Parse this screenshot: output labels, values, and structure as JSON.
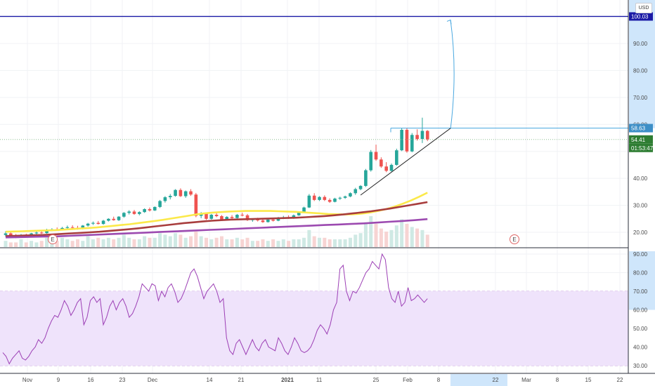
{
  "currency_label": "USD",
  "colors": {
    "up": "#26a69a",
    "down": "#ef5350",
    "ma_fast": "#fbe94a",
    "ma_mid": "#a83d3d",
    "ma_slow": "#9c4ab0",
    "rsi_line": "#9c3fb5",
    "rsi_band": "#efe3fb",
    "target_line": "#1a1aa6",
    "resistance": "#4aa8e0",
    "projection": "#4aa8e0",
    "trendline": "#222222",
    "current_price": "#2e7d32",
    "axis_highlight": "#cfe6fb"
  },
  "price_axis": {
    "ticks": [
      "90.00",
      "80.00",
      "70.00",
      "60.00",
      "40.00",
      "30.00",
      "20.00"
    ],
    "badges": {
      "target": "100.03",
      "resistance": "58.63",
      "current": "54.41",
      "countdown": "01:53:47"
    }
  },
  "rsi_axis": {
    "ticks": [
      "90.00",
      "80.00",
      "70.00",
      "60.00",
      "50.00",
      "40.00",
      "30.00"
    ]
  },
  "time_axis": {
    "labels": [
      "Nov",
      "9",
      "16",
      "23",
      "Dec",
      "14",
      "21",
      "2021",
      "11",
      "25",
      "Feb",
      "8",
      "22",
      "Mar",
      "8",
      "15",
      "22"
    ]
  },
  "earnings_markers": [
    "E",
    "E"
  ],
  "chart_data": [
    {
      "type": "candlestick",
      "title": "",
      "xlabel": "",
      "ylabel": "",
      "ylim": [
        15,
        103
      ],
      "y_ticks": [
        20,
        30,
        40,
        60,
        70,
        80,
        90
      ],
      "x_labels": [
        "Nov",
        "9",
        "16",
        "23",
        "Dec",
        "14",
        "21",
        "2021",
        "11",
        "25",
        "Feb",
        "8",
        "22",
        "Mar",
        "8",
        "15",
        "22"
      ],
      "series": [
        {
          "name": "",
          "kind": "ohlc",
          "values": [
            [
              19,
              20.4,
              18.4,
              19.6
            ],
            [
              19.6,
              20,
              18.6,
              18.8
            ],
            [
              18.8,
              19.4,
              17.8,
              18.3
            ],
            [
              18.3,
              19.4,
              18,
              19.1
            ],
            [
              19.1,
              19.5,
              18.4,
              18.7
            ],
            [
              18.7,
              19.8,
              18.5,
              19.6
            ],
            [
              19.6,
              20.3,
              19.2,
              19.9
            ],
            [
              19.9,
              20.4,
              19.4,
              19.7
            ],
            [
              19.7,
              21.3,
              19.5,
              20.9
            ],
            [
              20.9,
              21.5,
              20.4,
              21.1
            ],
            [
              21.1,
              21.8,
              20.6,
              20.9
            ],
            [
              20.9,
              22,
              20.7,
              21.6
            ],
            [
              21.6,
              22.5,
              21.2,
              21.9
            ],
            [
              21.9,
              22.6,
              21.3,
              21.7
            ],
            [
              21.7,
              22.4,
              21,
              21.3
            ],
            [
              21.3,
              22.7,
              21.1,
              22.5
            ],
            [
              22.5,
              23.5,
              22.1,
              23.2
            ],
            [
              23.2,
              24,
              22.7,
              23.5
            ],
            [
              23.5,
              24.2,
              22.9,
              23.1
            ],
            [
              23.1,
              24.6,
              22.8,
              24.3
            ],
            [
              24.3,
              25.2,
              24,
              25
            ],
            [
              25,
              25.8,
              24.3,
              24.5
            ],
            [
              24.5,
              26,
              24.2,
              25.8
            ],
            [
              25.8,
              27.5,
              25.4,
              27.2
            ],
            [
              27.2,
              28.2,
              26.6,
              27.7
            ],
            [
              27.7,
              28.3,
              26.5,
              26.8
            ],
            [
              26.8,
              27.8,
              26.3,
              27.5
            ],
            [
              27.5,
              28.9,
              27.2,
              28.6
            ],
            [
              28.6,
              29.2,
              27.7,
              28.1
            ],
            [
              28.1,
              29.6,
              27.9,
              29.4
            ],
            [
              29.4,
              32,
              29,
              31.6
            ],
            [
              31.6,
              33.4,
              31,
              33
            ],
            [
              33,
              34.2,
              32.2,
              33.5
            ],
            [
              33.5,
              36,
              33.2,
              35.7
            ],
            [
              35.7,
              36.3,
              33.1,
              33.4
            ],
            [
              33.4,
              35.5,
              32.8,
              35.2
            ],
            [
              35.2,
              36,
              33.5,
              34
            ],
            [
              34,
              34.6,
              25.6,
              26.1
            ],
            [
              26.1,
              27.5,
              25.2,
              26.9
            ],
            [
              26.9,
              27.3,
              24.6,
              25
            ],
            [
              25,
              26.8,
              24.7,
              26.5
            ],
            [
              26.5,
              27.2,
              25.6,
              26
            ],
            [
              26,
              26.4,
              24.4,
              24.8
            ],
            [
              24.8,
              26,
              24.5,
              25.7
            ],
            [
              25.7,
              26.4,
              25,
              25.3
            ],
            [
              25.3,
              26.8,
              25.1,
              26.5
            ],
            [
              26.5,
              27.3,
              25.9,
              26.3
            ],
            [
              26.3,
              26.8,
              24.2,
              24.5
            ],
            [
              24.5,
              25.2,
              23.9,
              24.8
            ],
            [
              24.8,
              25.4,
              24,
              24.4
            ],
            [
              24.4,
              24.9,
              23.5,
              23.8
            ],
            [
              23.8,
              25,
              23.6,
              24.7
            ],
            [
              24.7,
              25.3,
              24,
              24.3
            ],
            [
              24.3,
              25.7,
              24.1,
              25.4
            ],
            [
              25.4,
              26.1,
              24.9,
              25.6
            ],
            [
              25.6,
              26.3,
              25,
              25.2
            ],
            [
              25.2,
              26.6,
              25,
              26.3
            ],
            [
              26.3,
              27.8,
              26.1,
              27.5
            ],
            [
              27.5,
              29.5,
              27.3,
              29.2
            ],
            [
              29.2,
              34.2,
              29,
              33.6
            ],
            [
              33.6,
              34.5,
              31.6,
              32
            ],
            [
              32,
              33.4,
              31.6,
              33.1
            ],
            [
              33.1,
              33.7,
              31.6,
              32
            ],
            [
              32,
              32.6,
              30.9,
              31.3
            ],
            [
              31.3,
              32.8,
              31.1,
              32.5
            ],
            [
              32.5,
              33.2,
              32,
              32.8
            ],
            [
              32.8,
              33.6,
              32.4,
              33.3
            ],
            [
              33.3,
              34.8,
              33,
              34.5
            ],
            [
              34.5,
              36.5,
              33.9,
              36
            ],
            [
              36,
              37.5,
              35.6,
              37.2
            ],
            [
              37.2,
              43.5,
              36.8,
              43
            ],
            [
              43,
              50.5,
              42.5,
              49.8
            ],
            [
              49.8,
              52.5,
              46.5,
              47
            ],
            [
              47,
              47.8,
              43.9,
              44.4
            ],
            [
              44.4,
              46,
              42.3,
              42.8
            ],
            [
              42.8,
              45.5,
              42.5,
              45
            ],
            [
              45,
              51,
              44.7,
              50.4
            ],
            [
              50.4,
              58.6,
              50.1,
              58
            ],
            [
              58,
              58.6,
              49.5,
              50
            ],
            [
              50,
              56.8,
              49.7,
              56.1
            ],
            [
              56.1,
              58.2,
              54,
              54.6
            ],
            [
              54.6,
              62.5,
              53.1,
              57.6
            ],
            [
              57.6,
              57.9,
              53.8,
              54.41
            ]
          ]
        },
        {
          "name": "",
          "kind": "ma_fast",
          "values": [
            20.2,
            20.3,
            20.4,
            20.5,
            20.6,
            20.7,
            20.8,
            21,
            21.2,
            21.4,
            21.6,
            21.8,
            22.1,
            22.4,
            22.7,
            23,
            23.4,
            23.8,
            24.2,
            24.6,
            25.1,
            25.6,
            26.1,
            26.6,
            27,
            27.3,
            27.5,
            27.7,
            27.8,
            27.9,
            27.9,
            27.9,
            27.9,
            27.8,
            27.7,
            27.6,
            27.4,
            27.2,
            27,
            26.8,
            26.7,
            26.6,
            26.7,
            26.9,
            27.3,
            27.9,
            28.6,
            29.5,
            30.6,
            31.8,
            33.2,
            34.7
          ]
        },
        {
          "name": "",
          "kind": "ma_mid",
          "values": [
            18.6,
            18.7,
            18.8,
            18.9,
            19,
            19.2,
            19.4,
            19.6,
            19.8,
            20,
            20.2,
            20.5,
            20.8,
            21.1,
            21.4,
            21.8,
            22.2,
            22.6,
            23,
            23.4,
            23.7,
            24,
            24.3,
            24.5,
            24.7,
            24.8,
            24.9,
            25,
            25.1,
            25.2,
            25.3,
            25.4,
            25.6,
            25.8,
            26,
            26.3,
            26.6,
            27,
            27.4,
            27.8,
            28.3,
            28.8,
            29.4,
            30,
            30.6,
            31.2
          ]
        },
        {
          "name": "",
          "kind": "ma_slow",
          "values": [
            18.1,
            18.2,
            18.3,
            18.4,
            18.5,
            18.7,
            18.9,
            19.1,
            19.3,
            19.5,
            19.7,
            19.9,
            20.1,
            20.3,
            20.5,
            20.7,
            20.9,
            21.1,
            21.3,
            21.5,
            21.7,
            21.9,
            22.1,
            22.3,
            22.5,
            22.7,
            22.9,
            23.1,
            23.3,
            23.6,
            23.9,
            24.2,
            24.5,
            24.9
          ]
        },
        {
          "name": "",
          "kind": "volume",
          "values": [
            0.4,
            0.3,
            0.3,
            0.5,
            0.3,
            0.4,
            0.3,
            0.4,
            0.6,
            0.5,
            0.4,
            0.6,
            0.5,
            0.4,
            0.5,
            0.4,
            0.7,
            0.5,
            0.6,
            0.5,
            0.6,
            0.5,
            0.6,
            0.8,
            0.6,
            0.5,
            0.5,
            0.7,
            0.6,
            0.6,
            0.9,
            0.8,
            0.7,
            0.9,
            0.8,
            0.6,
            0.7,
            1.0,
            0.7,
            0.6,
            0.5,
            0.6,
            0.7,
            0.5,
            0.5,
            0.6,
            0.5,
            0.6,
            0.4,
            0.4,
            0.5,
            0.4,
            0.5,
            0.4,
            0.5,
            0.4,
            0.5,
            0.5,
            0.6,
            1.1,
            0.7,
            0.6,
            0.6,
            0.5,
            0.5,
            0.5,
            0.5,
            0.6,
            0.8,
            0.9,
            1.6,
            2.0,
            1.5,
            1.2,
            1.0,
            1.1,
            1.4,
            1.8,
            1.5,
            1.3,
            1.2,
            1.1,
            0.8
          ]
        }
      ],
      "annotations": [
        {
          "kind": "hline",
          "y": 100.03,
          "label": "100.03"
        },
        {
          "kind": "hline",
          "y": 58.63,
          "label": "58.63"
        },
        {
          "kind": "trendline",
          "from": [
            33.8,
            69
          ],
          "to": [
            58.6,
            86.5
          ]
        },
        {
          "kind": "arrow",
          "from": [
            58.63,
            86.5
          ],
          "to": [
            100.03,
            92
          ]
        }
      ]
    },
    {
      "type": "line",
      "title": "",
      "ylim": [
        28,
        92
      ],
      "y_ticks": [
        30,
        40,
        50,
        60,
        70,
        80,
        90
      ],
      "band": [
        30,
        70
      ],
      "series": [
        {
          "name": "",
          "values": [
            37,
            35,
            31,
            34,
            36,
            38,
            34,
            33,
            35,
            38,
            40,
            44,
            42,
            45,
            50,
            54,
            57,
            56,
            60,
            65,
            62,
            57,
            60,
            64,
            66,
            52,
            56,
            65,
            67,
            64,
            66,
            52,
            56,
            62,
            65,
            60,
            64,
            66,
            62,
            56,
            58,
            62,
            67,
            74,
            72,
            70,
            74,
            73,
            65,
            70,
            67,
            72,
            74,
            70,
            64,
            66,
            70,
            75,
            80,
            82,
            78,
            72,
            66,
            70,
            72,
            74,
            70,
            64,
            66,
            45,
            38,
            36,
            42,
            44,
            40,
            36,
            40,
            44,
            40,
            38,
            42,
            44,
            40,
            39,
            38,
            45,
            42,
            38,
            36,
            40,
            45,
            42,
            38,
            37,
            38,
            40,
            44,
            49,
            52,
            50,
            47,
            52,
            60,
            64,
            82,
            84,
            70,
            65,
            70,
            69,
            72,
            76,
            80,
            82,
            86,
            84,
            82,
            90,
            87,
            72,
            66,
            64,
            70,
            62,
            64,
            72,
            65,
            66,
            68,
            66,
            64,
            66
          ]
        }
      ]
    }
  ]
}
